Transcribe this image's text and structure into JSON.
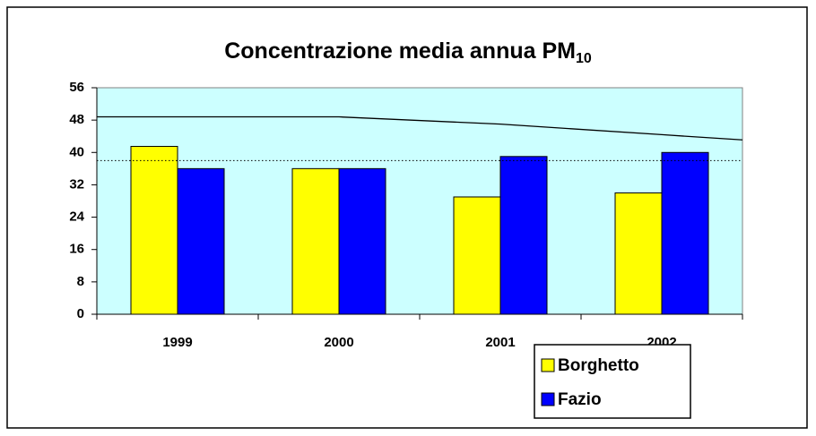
{
  "chart_data": {
    "type": "bar",
    "title": "Concentrazione media annua PM",
    "title_subscript": "10",
    "categories": [
      "1999",
      "2000",
      "2001",
      "2002"
    ],
    "series": [
      {
        "name": "Borghetto",
        "color": "#ffff00",
        "values": [
          41.5,
          36,
          29,
          30
        ]
      },
      {
        "name": "Fazio",
        "color": "#0000ff",
        "values": [
          36,
          36,
          39,
          40
        ]
      }
    ],
    "lines": [
      {
        "style": "solid",
        "color": "#000000",
        "values": [
          48.8,
          48.8,
          47,
          44.4
        ]
      },
      {
        "style": "dotted",
        "color": "#000000",
        "value": 38
      }
    ],
    "ylim": [
      0,
      56
    ],
    "yticks": [
      0,
      8,
      16,
      24,
      32,
      40,
      48,
      56
    ],
    "plot_background": "#ccffff",
    "legend": "lower right"
  }
}
